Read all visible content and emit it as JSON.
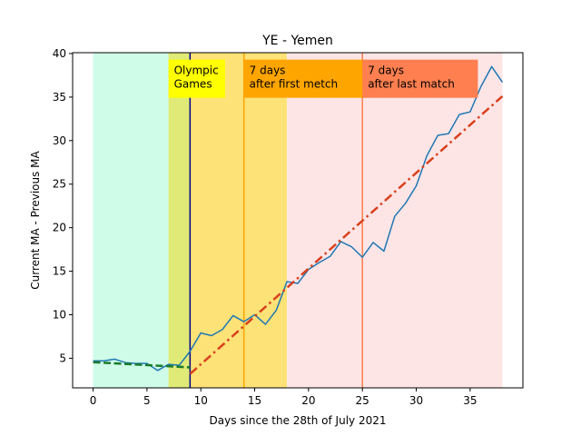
{
  "chart_data": {
    "type": "line",
    "title": "YE - Yemen",
    "xlabel": "Days since the 28th of July 2021",
    "ylabel": "Current MA - Previous MA",
    "xlim": [
      -1.9,
      39.9
    ],
    "ylim": [
      1.6,
      40.1
    ],
    "xticks": [
      0,
      5,
      10,
      15,
      20,
      25,
      30,
      35
    ],
    "yticks": [
      5,
      10,
      15,
      20,
      25,
      30,
      35,
      40
    ],
    "grid": false,
    "bands": [
      {
        "x0": 0,
        "x1": 7,
        "color": "#cffce9"
      },
      {
        "x0": 7,
        "x1": 9,
        "color": "#e0ea76"
      },
      {
        "x0": 9,
        "x1": 18,
        "color": "#fde277"
      },
      {
        "x0": 18,
        "x1": 38,
        "color": "#fee5e5"
      }
    ],
    "vlines": [
      {
        "x": 9,
        "color": "#00008b"
      },
      {
        "x": 14,
        "color": "#ffa500"
      },
      {
        "x": 25,
        "color": "#ff7f50"
      }
    ],
    "annotations": [
      {
        "x": 7,
        "y": 39.3,
        "lines": [
          "Olympic",
          "Games"
        ],
        "bg": "#ffff00"
      },
      {
        "x": 14,
        "y": 39.3,
        "lines": [
          "7 days",
          "after first metch"
        ],
        "bg": "#ffa500"
      },
      {
        "x": 25,
        "y": 39.3,
        "lines": [
          "7 days",
          "after last match"
        ],
        "bg": "#ff7f50"
      }
    ],
    "series": [
      {
        "color": "#1f77b4",
        "style": "solid",
        "x": [
          0,
          1,
          2,
          3,
          4,
          5,
          6,
          7,
          8,
          9,
          10,
          11,
          12,
          13,
          14,
          15,
          16,
          17,
          18,
          19,
          20,
          21,
          22,
          23,
          24,
          25,
          26,
          27,
          28,
          29,
          30,
          31,
          32,
          33,
          34,
          35,
          36,
          37,
          38
        ],
        "y": [
          4.7,
          4.7,
          4.9,
          4.5,
          4.4,
          4.4,
          3.6,
          4.3,
          4.2,
          5.8,
          7.9,
          7.6,
          8.3,
          9.9,
          9.2,
          10.0,
          8.9,
          10.5,
          13.8,
          13.6,
          15.2,
          16.0,
          16.7,
          18.4,
          17.8,
          16.6,
          18.3,
          17.3,
          21.3,
          22.8,
          24.8,
          28.3,
          30.6,
          30.8,
          33.0,
          33.3,
          36.2,
          38.5,
          36.7
        ]
      },
      {
        "color": "#1a7a2a",
        "style": "dashed",
        "x": [
          0,
          9
        ],
        "y": [
          4.55,
          3.95
        ]
      },
      {
        "color": "#d9401e",
        "style": "dashdot",
        "x": [
          9,
          38
        ],
        "y": [
          3.2,
          35.1
        ]
      }
    ]
  }
}
